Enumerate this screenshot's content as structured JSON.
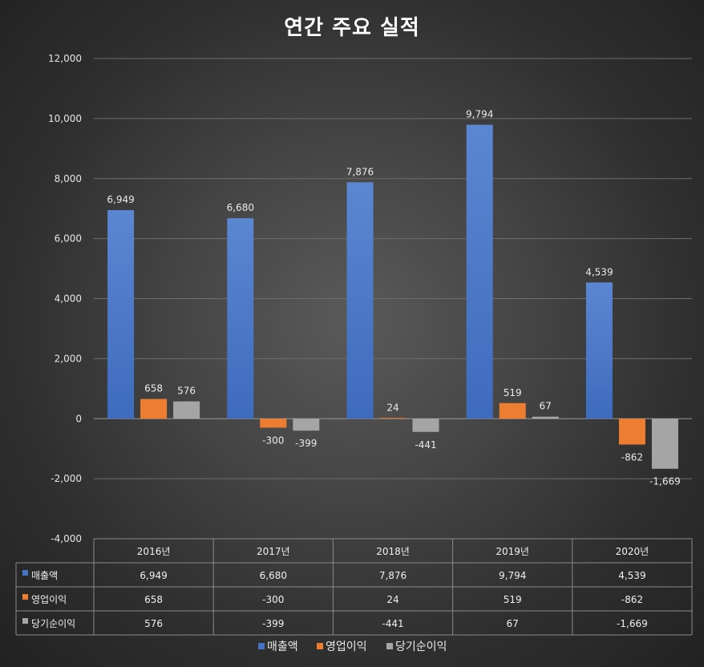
{
  "chart_data": {
    "type": "bar",
    "title": "연간 주요 실적",
    "categories": [
      "2016년",
      "2017년",
      "2018년",
      "2019년",
      "2020년"
    ],
    "series": [
      {
        "name": "매출액",
        "color": "#4472C4",
        "values": [
          6949,
          6680,
          7876,
          9794,
          4539
        ],
        "labels": [
          "6,949",
          "6,680",
          "7,876",
          "9,794",
          "4,539"
        ]
      },
      {
        "name": "영업이익",
        "color": "#ED7D31",
        "values": [
          658,
          -300,
          24,
          519,
          -862
        ],
        "labels": [
          "658",
          "-300",
          "24",
          "519",
          "-862"
        ]
      },
      {
        "name": "당기순이익",
        "color": "#A5A5A5",
        "values": [
          576,
          -399,
          -441,
          67,
          -1669
        ],
        "labels": [
          "576",
          "-399",
          "-441",
          "67",
          "-1,669"
        ]
      }
    ],
    "ylim": [
      -4000,
      12000
    ],
    "y_ticks": [
      12000,
      10000,
      8000,
      6000,
      4000,
      2000,
      0,
      -2000,
      -4000
    ],
    "y_tick_labels": [
      "12,000",
      "10,000",
      "8,000",
      "6,000",
      "4,000",
      "2,000",
      "0",
      "-2,000",
      "-4,000"
    ],
    "grid": true,
    "legend": "bottom",
    "data_table": true,
    "xlabel": "",
    "ylabel": ""
  }
}
